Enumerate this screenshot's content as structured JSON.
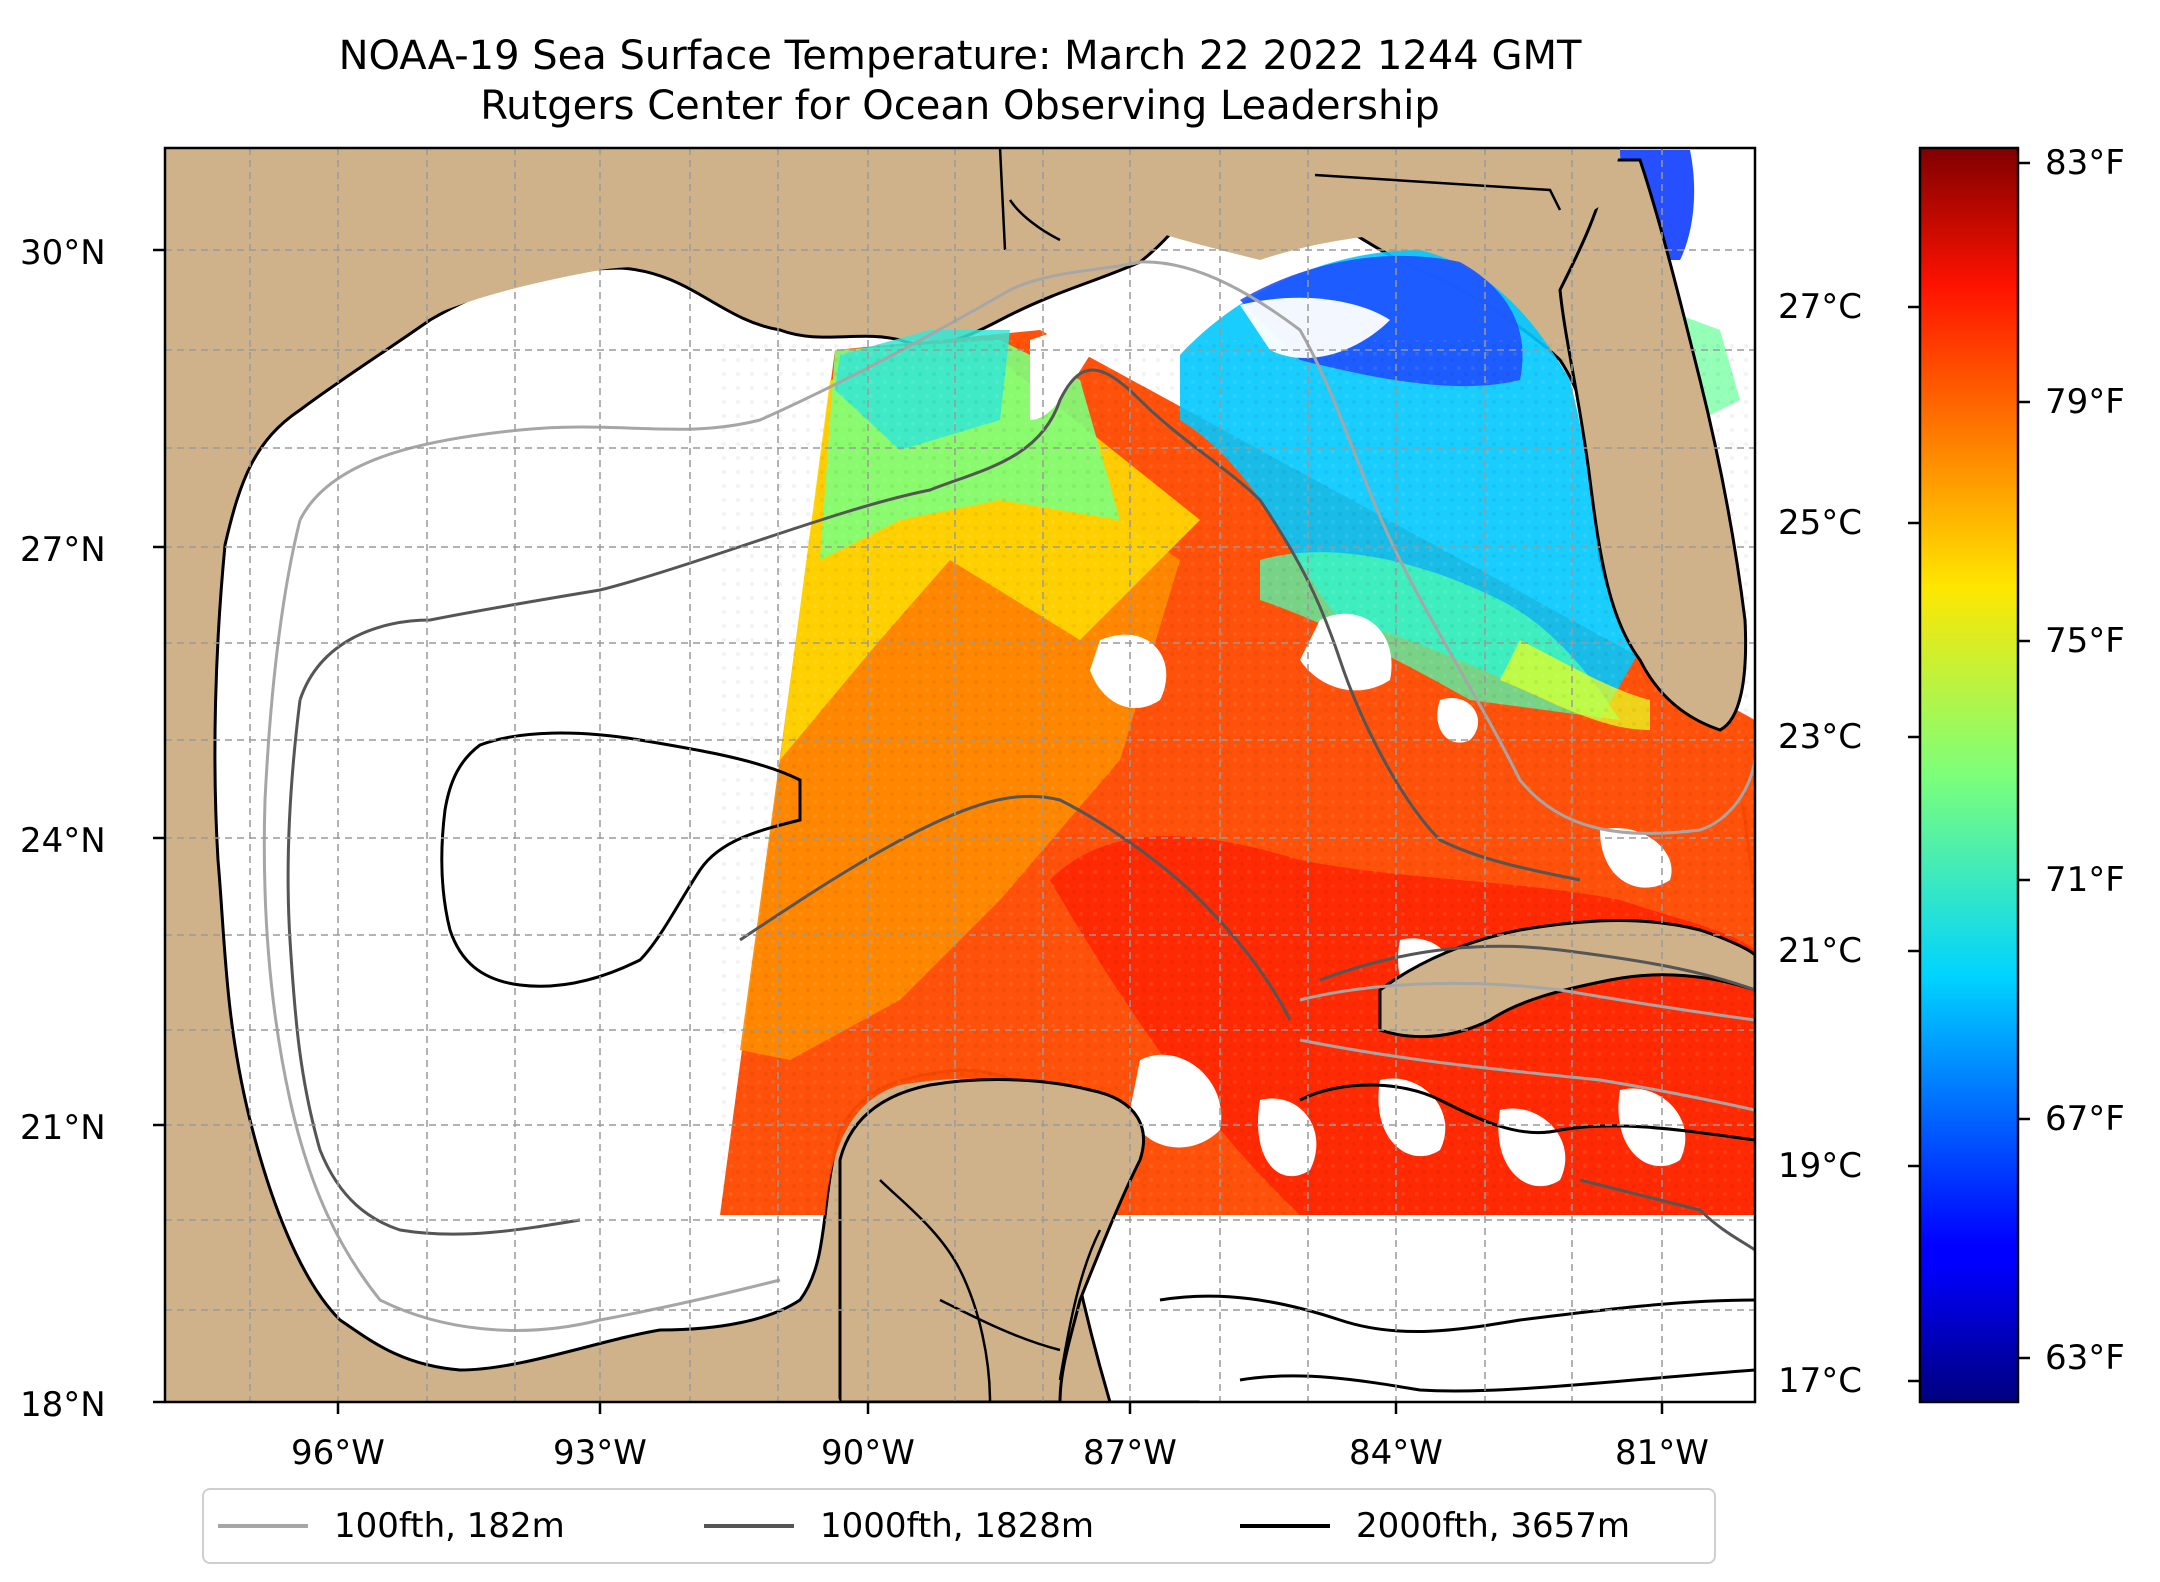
{
  "title": "NOAA-19 Sea Surface Temperature: March 22 2022 1244 GMT",
  "subtitle": "Rutgers Center for Ocean Observing Leadership",
  "map": {
    "region": "Gulf of Mexico",
    "lat_range": [
      18,
      31
    ],
    "lon_range": [
      -98.2,
      -80.6
    ],
    "land_color": "#cfb28a",
    "ocean_nodata_color": "#ffffff",
    "lat_ticks": [
      {
        "value": 30,
        "label": "30°N"
      },
      {
        "value": 27,
        "label": "27°N"
      },
      {
        "value": 24,
        "label": "24°N"
      },
      {
        "value": 21,
        "label": "21°N"
      },
      {
        "value": 18,
        "label": "18°N"
      }
    ],
    "lon_ticks": [
      {
        "value": -96,
        "label": "96°W"
      },
      {
        "value": -93,
        "label": "93°W"
      },
      {
        "value": -90,
        "label": "90°W"
      },
      {
        "value": -87,
        "label": "87°W"
      },
      {
        "value": -84,
        "label": "84°W"
      },
      {
        "value": -81,
        "label": "81°W"
      }
    ],
    "gridlines": true
  },
  "colorbar": {
    "colormap": "jet",
    "celsius_labels": [
      "27°C",
      "25°C",
      "23°C",
      "21°C",
      "19°C",
      "17°C"
    ],
    "celsius_values": [
      27,
      25,
      23,
      21,
      19,
      17
    ],
    "fahrenheit_labels": [
      "83°F",
      "79°F",
      "75°F",
      "71°F",
      "67°F",
      "63°F"
    ],
    "fahrenheit_values": [
      83,
      79,
      75,
      71,
      67,
      63
    ],
    "range_f": [
      62,
      84
    ]
  },
  "legend": {
    "items": [
      {
        "label": "100fth, 182m",
        "color": "#a6a6a6"
      },
      {
        "label": "1000fth, 1828m",
        "color": "#555555"
      },
      {
        "label": "2000fth, 3657m",
        "color": "#000000"
      }
    ]
  }
}
